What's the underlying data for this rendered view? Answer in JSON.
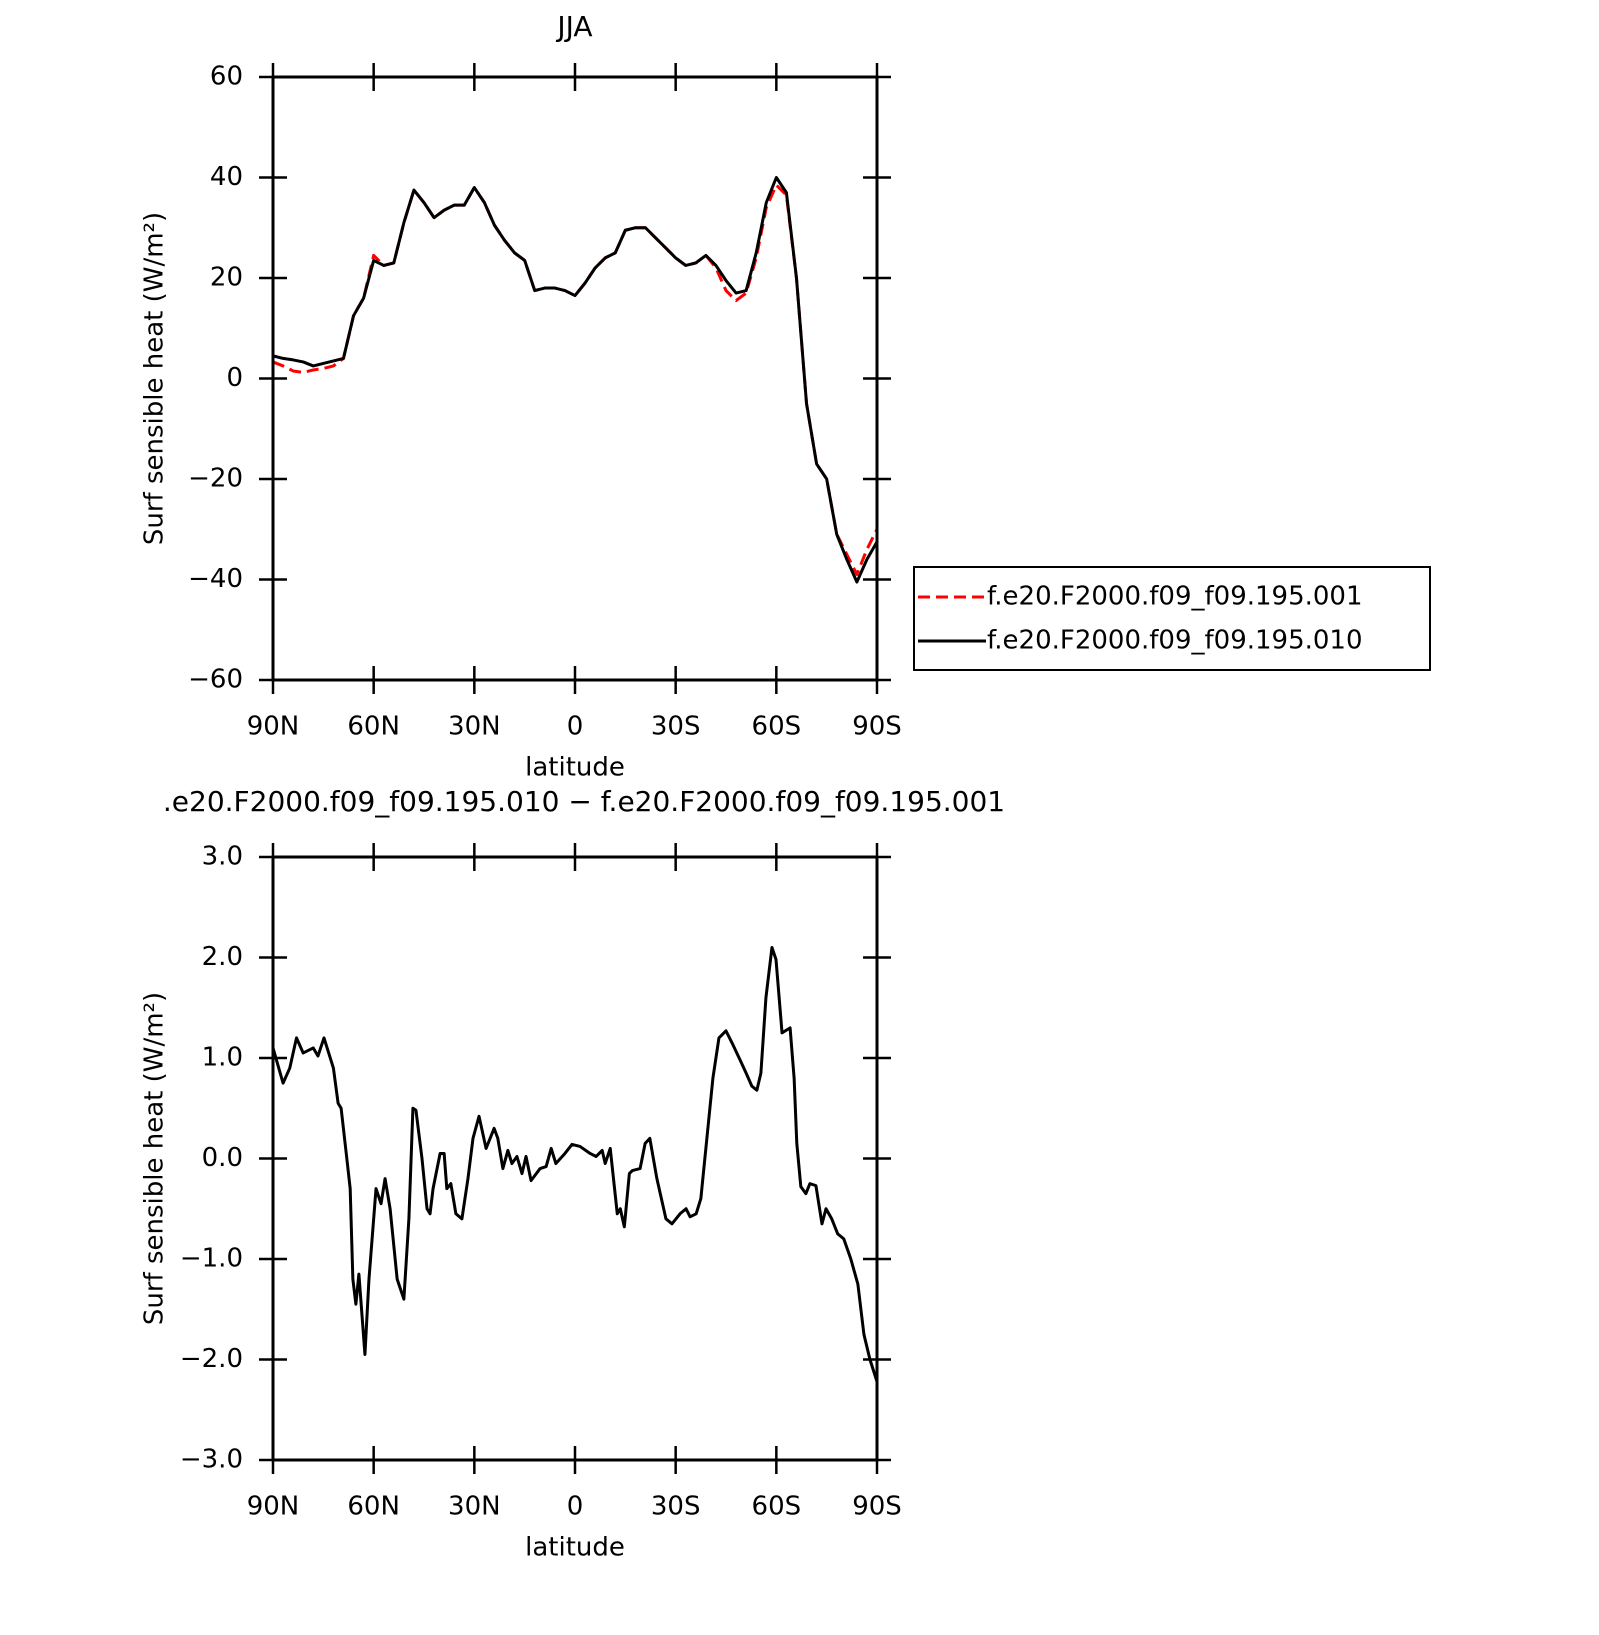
{
  "chart_data": [
    {
      "type": "line",
      "title": "JJA",
      "xlabel": "latitude",
      "ylabel": "Surf sensible heat (W/m²)",
      "x": [
        90,
        87,
        84,
        81,
        78,
        75,
        72,
        69,
        66,
        63,
        60,
        57,
        54,
        51,
        48,
        45,
        42,
        39,
        36,
        33,
        30,
        27,
        24,
        21,
        18,
        15,
        12,
        9,
        6,
        3,
        0,
        -3,
        -6,
        -9,
        -12,
        -15,
        -18,
        -21,
        -24,
        -27,
        -30,
        -33,
        -36,
        -39,
        -42,
        -45,
        -48,
        -51,
        -54,
        -57,
        -60,
        -63,
        -66,
        -69,
        -72,
        -75,
        -78,
        -81,
        -84,
        -87,
        -90
      ],
      "series": [
        {
          "name": "f.e20.F2000.f09_f09.195.001",
          "color": "#ff0000",
          "linestyle": "dashed",
          "values": [
            3.3,
            2.5,
            1.5,
            1.2,
            1.7,
            2,
            2.5,
            4,
            12.5,
            16,
            24.5,
            22.5,
            23,
            31,
            37.5,
            35,
            32,
            33.5,
            34.5,
            34.5,
            38,
            35,
            30.5,
            27.5,
            25,
            23.5,
            17.5,
            18,
            18,
            17.5,
            16.5,
            19,
            22,
            24,
            25,
            29.5,
            30,
            30,
            28,
            26,
            24,
            22.5,
            23,
            24.5,
            22,
            17.5,
            15.5,
            17,
            24,
            34,
            38.5,
            36.5,
            20,
            -5,
            -17,
            -20,
            -31,
            -35,
            -39,
            -34,
            -30
          ]
        },
        {
          "name": "f.e20.F2000.f09_f09.195.010",
          "color": "#000000",
          "linestyle": "solid",
          "values": [
            4.5,
            4,
            3.7,
            3.3,
            2.5,
            3,
            3.5,
            4,
            12.5,
            16,
            23.5,
            22.5,
            23,
            31,
            37.5,
            35,
            32,
            33.5,
            34.5,
            34.5,
            38,
            35,
            30.5,
            27.5,
            25,
            23.5,
            17.5,
            18,
            18,
            17.5,
            16.5,
            19,
            22,
            24,
            25,
            29.5,
            30,
            30,
            28,
            26,
            24,
            22.5,
            23,
            24.5,
            22.5,
            19.5,
            17,
            17.5,
            25,
            35,
            40,
            37,
            20,
            -5,
            -17,
            -20,
            -31,
            -36,
            -40.5,
            -36,
            -32.5
          ]
        }
      ],
      "xlim": [
        90,
        -90
      ],
      "xticks": [
        {
          "value": 90,
          "label": "90N"
        },
        {
          "value": 60,
          "label": "60N"
        },
        {
          "value": 30,
          "label": "30N"
        },
        0,
        {
          "value": -30,
          "label": "30S"
        },
        {
          "value": -60,
          "label": "60S"
        },
        {
          "value": -90,
          "label": "90S"
        }
      ],
      "ylim": [
        -60,
        60
      ],
      "yticks": [
        {
          "value": -60,
          "label": "−60"
        },
        {
          "value": -40,
          "label": "−40"
        },
        {
          "value": -20,
          "label": "−20"
        },
        0,
        20,
        40,
        60
      ],
      "legend": "right"
    },
    {
      "type": "line",
      "title": ".e20.F2000.f09_f09.195.010 − f.e20.F2000.f09_f09.195.001",
      "xlabel": "latitude",
      "ylabel": "Surf sensible heat (W/m²)",
      "x": [
        90,
        87,
        85,
        83,
        81,
        78,
        76.6,
        74.8,
        72,
        70.6,
        69.7,
        68,
        67,
        66.2,
        65.3,
        64.4,
        62.6,
        61.4,
        59.3,
        57.8,
        56.6,
        55.1,
        53,
        51,
        49.5,
        48.3,
        47.4,
        45.6,
        44.1,
        43.2,
        42.3,
        40.2,
        39,
        38.2,
        37,
        35.5,
        33.7,
        31.9,
        30.4,
        28.6,
        26.5,
        24.1,
        23,
        21.5,
        20,
        18.8,
        17.3,
        15.8,
        14.6,
        13.1,
        10.4,
        8.6,
        7.1,
        5.7,
        3,
        0.9,
        -1.5,
        -4.5,
        -6.3,
        -8.1,
        -9,
        -10.5,
        -12.6,
        -13.5,
        -14.7,
        -16.2,
        -17.1,
        -19.4,
        -20.9,
        -22.3,
        -24.4,
        -27.1,
        -28.9,
        -31.3,
        -33.1,
        -34.3,
        -36.1,
        -37.5,
        -39.3,
        -41.1,
        -42.9,
        -45,
        -46.8,
        -49.2,
        -51,
        -52.7,
        -54.2,
        -55.4,
        -56.9,
        -58.7,
        -59.9,
        -61.7,
        -64.1,
        -65.3,
        -66.1,
        -67.3,
        -68.8,
        -70,
        -71.8,
        -73.6,
        -74.8,
        -76.5,
        -78.3,
        -80.1,
        -82.2,
        -84.3,
        -86.1,
        -87.9,
        -90
      ],
      "series": [
        {
          "name": null,
          "color": "#000000",
          "linestyle": "solid",
          "values": [
            1.1,
            0.75,
            0.9,
            1.2,
            1.05,
            1.1,
            1.02,
            1.2,
            0.9,
            0.55,
            0.5,
            0,
            -0.3,
            -1.2,
            -1.45,
            -1.15,
            -1.95,
            -1.2,
            -0.3,
            -0.45,
            -0.2,
            -0.5,
            -1.2,
            -1.4,
            -0.6,
            0.5,
            0.48,
            0,
            -0.5,
            -0.55,
            -0.3,
            0.05,
            0.05,
            -0.3,
            -0.25,
            -0.55,
            -0.6,
            -0.2,
            0.2,
            0.42,
            0.1,
            0.3,
            0.2,
            -0.1,
            0.08,
            -0.05,
            0.02,
            -0.15,
            0.02,
            -0.22,
            -0.1,
            -0.08,
            0.1,
            -0.05,
            0.05,
            0.14,
            0.12,
            0.05,
            0.02,
            0.08,
            -0.05,
            0.1,
            -0.55,
            -0.5,
            -0.68,
            -0.15,
            -0.12,
            -0.1,
            0.15,
            0.2,
            -0.2,
            -0.6,
            -0.65,
            -0.55,
            -0.5,
            -0.58,
            -0.55,
            -0.4,
            0.2,
            0.8,
            1.2,
            1.27,
            1.15,
            0.98,
            0.85,
            0.72,
            0.68,
            0.85,
            1.6,
            2.1,
            1.98,
            1.25,
            1.3,
            0.8,
            0.15,
            -0.28,
            -0.35,
            -0.25,
            -0.27,
            -0.65,
            -0.5,
            -0.6,
            -0.75,
            -0.8,
            -1.0,
            -1.25,
            -1.75,
            -2.0,
            -2.22
          ]
        }
      ],
      "xlim": [
        90,
        -90
      ],
      "xticks": [
        {
          "value": 90,
          "label": "90N"
        },
        {
          "value": 60,
          "label": "60N"
        },
        {
          "value": 30,
          "label": "30N"
        },
        0,
        {
          "value": -30,
          "label": "30S"
        },
        {
          "value": -60,
          "label": "60S"
        },
        {
          "value": -90,
          "label": "90S"
        }
      ],
      "ylim": [
        -3,
        3
      ],
      "yticks": [
        {
          "value": -3,
          "label": "−3.0"
        },
        {
          "value": -2,
          "label": "−2.0"
        },
        {
          "value": -1,
          "label": "−1.0"
        },
        {
          "value": 0,
          "label": "0.0"
        },
        {
          "value": 1,
          "label": "1.0"
        },
        {
          "value": 2,
          "label": "2.0"
        },
        {
          "value": 3,
          "label": "3.0"
        }
      ]
    }
  ]
}
